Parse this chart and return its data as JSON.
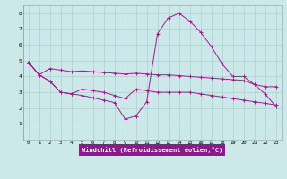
{
  "x_ticks": [
    0,
    1,
    2,
    3,
    4,
    5,
    6,
    7,
    8,
    9,
    10,
    11,
    12,
    13,
    14,
    15,
    16,
    17,
    18,
    19,
    20,
    21,
    22,
    23
  ],
  "line1_x": [
    0,
    1,
    2,
    3,
    4,
    5,
    6,
    7,
    8,
    9,
    10,
    11,
    12,
    13,
    14,
    15,
    16,
    17,
    18,
    19,
    20,
    21,
    22,
    23
  ],
  "line1_y": [
    4.9,
    4.1,
    4.5,
    4.4,
    4.3,
    4.35,
    4.3,
    4.25,
    4.2,
    4.15,
    4.2,
    4.15,
    4.1,
    4.1,
    4.05,
    4.0,
    3.95,
    3.9,
    3.85,
    3.8,
    3.75,
    3.5,
    3.35,
    3.35
  ],
  "line2_x": [
    0,
    1,
    2,
    3,
    4,
    5,
    6,
    7,
    8,
    9,
    10,
    11,
    12,
    13,
    14,
    15,
    16,
    17,
    18,
    19,
    20,
    21,
    22,
    23
  ],
  "line2_y": [
    4.9,
    4.1,
    3.7,
    3.0,
    2.9,
    2.8,
    2.65,
    2.5,
    2.35,
    1.3,
    1.5,
    2.4,
    6.7,
    7.7,
    8.0,
    7.5,
    6.8,
    5.9,
    4.8,
    4.0,
    4.0,
    3.5,
    2.9,
    2.1
  ],
  "line3_x": [
    0,
    1,
    2,
    3,
    4,
    5,
    6,
    7,
    8,
    9,
    10,
    11,
    12,
    13,
    14,
    15,
    16,
    17,
    18,
    19,
    20,
    21,
    22,
    23
  ],
  "line3_y": [
    4.9,
    4.1,
    3.7,
    3.0,
    2.9,
    3.2,
    3.1,
    3.0,
    2.8,
    2.6,
    3.2,
    3.1,
    3.0,
    3.0,
    3.0,
    3.0,
    2.9,
    2.8,
    2.7,
    2.6,
    2.5,
    2.4,
    2.3,
    2.2
  ],
  "color": "#9b1c8a",
  "bg_color": "#cce8e8",
  "grid_color": "#aad0d0",
  "xlabel": "Windchill (Refroidissement éolien,°C)",
  "xlabel_bg": "#8b1a8b",
  "ylim": [
    0,
    8.5
  ],
  "xlim": [
    -0.5,
    23.5
  ],
  "yticks": [
    1,
    2,
    3,
    4,
    5,
    6,
    7,
    8
  ],
  "marker": "+"
}
